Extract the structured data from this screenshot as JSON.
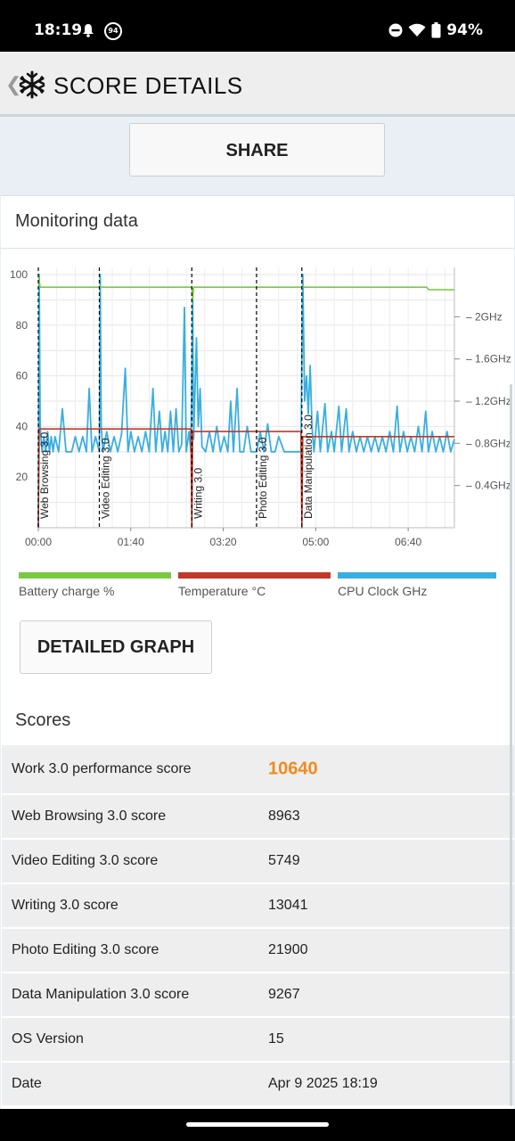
{
  "status_bar": {
    "time": "18:19",
    "badge": "94",
    "battery": "94%"
  },
  "app_bar": {
    "title": "SCORE DETAILS"
  },
  "share_label": "SHARE",
  "monitoring": {
    "title": "Monitoring data",
    "chart_data": {
      "type": "line",
      "y_left_ticks": [
        "100",
        "80",
        "60",
        "40",
        "20"
      ],
      "y_left_range": [
        0,
        100
      ],
      "y_right_ticks": [
        "2GHz",
        "1.6GHz",
        "1.2GHz",
        "0.8GHz",
        "0.4GHz"
      ],
      "y_right_range_ghz": [
        0,
        2.4
      ],
      "x_ticks": [
        "00:00",
        "01:40",
        "03:20",
        "05:00",
        "06:40"
      ],
      "x_range_sec": [
        0,
        450
      ],
      "grid": true,
      "legend_placement": "bottom",
      "colors": {
        "battery": "#7ac943",
        "temperature": "#c0392b",
        "cpu": "#3aaee0",
        "marker": "#000000"
      },
      "phases": [
        {
          "label": "Web Browsing 3.0",
          "x_sec": 0
        },
        {
          "label": "Video Editing 3.0",
          "x_sec": 66
        },
        {
          "label": "Writing 3.0",
          "x_sec": 166
        },
        {
          "label": "Photo Editing 3.0",
          "x_sec": 236
        },
        {
          "label": "Data Manipulation 3.0",
          "x_sec": 285
        }
      ],
      "series": [
        {
          "name": "Battery charge %",
          "points": [
            [
              0,
              100
            ],
            [
              2,
              95
            ],
            [
              166,
              95
            ],
            [
              167,
              90
            ],
            [
              168,
              95
            ],
            [
              420,
              95
            ],
            [
              422,
              94
            ],
            [
              450,
              94
            ]
          ]
        },
        {
          "name": "Temperature °C",
          "points": [
            [
              0,
              0
            ],
            [
              1,
              39
            ],
            [
              165,
              39
            ],
            [
              166,
              0
            ],
            [
              167,
              38
            ],
            [
              284,
              38
            ],
            [
              285,
              0
            ],
            [
              286,
              36
            ],
            [
              450,
              36
            ]
          ]
        },
        {
          "name": "CPU Clock GHz",
          "points": [
            [
              0,
              0
            ],
            [
              1,
              100
            ],
            [
              2,
              40
            ],
            [
              4,
              30
            ],
            [
              6,
              36
            ],
            [
              8,
              30
            ],
            [
              10,
              38
            ],
            [
              12,
              30
            ],
            [
              14,
              36
            ],
            [
              16,
              30
            ],
            [
              18,
              36
            ],
            [
              22,
              30
            ],
            [
              26,
              47
            ],
            [
              30,
              30
            ],
            [
              36,
              30
            ],
            [
              40,
              36
            ],
            [
              44,
              30
            ],
            [
              48,
              36
            ],
            [
              52,
              30
            ],
            [
              55,
              55
            ],
            [
              58,
              30
            ],
            [
              62,
              36
            ],
            [
              66,
              30
            ],
            [
              67,
              100
            ],
            [
              68,
              40
            ],
            [
              70,
              30
            ],
            [
              74,
              38
            ],
            [
              78,
              30
            ],
            [
              82,
              36
            ],
            [
              86,
              30
            ],
            [
              90,
              37
            ],
            [
              94,
              63
            ],
            [
              97,
              30
            ],
            [
              100,
              38
            ],
            [
              104,
              30
            ],
            [
              108,
              36
            ],
            [
              112,
              30
            ],
            [
              116,
              38
            ],
            [
              120,
              30
            ],
            [
              124,
              55
            ],
            [
              127,
              30
            ],
            [
              131,
              46
            ],
            [
              134,
              30
            ],
            [
              137,
              38
            ],
            [
              140,
              30
            ],
            [
              143,
              46
            ],
            [
              146,
              30
            ],
            [
              149,
              47
            ],
            [
              152,
              30
            ],
            [
              155,
              33
            ],
            [
              158,
              87
            ],
            [
              160,
              30
            ],
            [
              163,
              38
            ],
            [
              165,
              30
            ],
            [
              167,
              90
            ],
            [
              168,
              35
            ],
            [
              171,
              75
            ],
            [
              173,
              40
            ],
            [
              175,
              55
            ],
            [
              177,
              32
            ],
            [
              181,
              30
            ],
            [
              185,
              38
            ],
            [
              189,
              30
            ],
            [
              193,
              40
            ],
            [
              197,
              30
            ],
            [
              201,
              36
            ],
            [
              205,
              30
            ],
            [
              208,
              50
            ],
            [
              211,
              30
            ],
            [
              215,
              55
            ],
            [
              218,
              30
            ],
            [
              222,
              30
            ],
            [
              226,
              40
            ],
            [
              230,
              30
            ],
            [
              236,
              30
            ],
            [
              240,
              38
            ],
            [
              244,
              30
            ],
            [
              248,
              41
            ],
            [
              252,
              30
            ],
            [
              256,
              30
            ],
            [
              260,
              36
            ],
            [
              266,
              30
            ],
            [
              272,
              30
            ],
            [
              276,
              30
            ],
            [
              280,
              30
            ],
            [
              284,
              30
            ],
            [
              286,
              100
            ],
            [
              288,
              50
            ],
            [
              290,
              60
            ],
            [
              292,
              45
            ],
            [
              294,
              64
            ],
            [
              296,
              40
            ],
            [
              298,
              30
            ],
            [
              302,
              46
            ],
            [
              305,
              30
            ],
            [
              310,
              49
            ],
            [
              313,
              30
            ],
            [
              317,
              38
            ],
            [
              320,
              30
            ],
            [
              325,
              48
            ],
            [
              328,
              30
            ],
            [
              333,
              47
            ],
            [
              336,
              30
            ],
            [
              340,
              38
            ],
            [
              344,
              30
            ],
            [
              348,
              36
            ],
            [
              352,
              30
            ],
            [
              356,
              36
            ],
            [
              360,
              30
            ],
            [
              364,
              36
            ],
            [
              368,
              30
            ],
            [
              372,
              36
            ],
            [
              376,
              30
            ],
            [
              380,
              38
            ],
            [
              384,
              30
            ],
            [
              388,
              48
            ],
            [
              391,
              30
            ],
            [
              395,
              38
            ],
            [
              399,
              30
            ],
            [
              403,
              36
            ],
            [
              407,
              30
            ],
            [
              411,
              40
            ],
            [
              415,
              30
            ],
            [
              419,
              46
            ],
            [
              422,
              30
            ],
            [
              426,
              38
            ],
            [
              430,
              30
            ],
            [
              434,
              36
            ],
            [
              438,
              30
            ],
            [
              442,
              38
            ],
            [
              446,
              30
            ],
            [
              450,
              35
            ]
          ]
        }
      ]
    },
    "detailed_graph_label": "DETAILED GRAPH"
  },
  "scores": {
    "title": "Scores",
    "rows": [
      {
        "label": "Work 3.0 performance score",
        "value": "10640"
      },
      {
        "label": "Web Browsing 3.0 score",
        "value": "8963"
      },
      {
        "label": "Video Editing 3.0 score",
        "value": "5749"
      },
      {
        "label": "Writing 3.0 score",
        "value": "13041"
      },
      {
        "label": "Photo Editing 3.0 score",
        "value": "21900"
      },
      {
        "label": "Data Manipulation 3.0 score",
        "value": "9267"
      },
      {
        "label": "OS Version",
        "value": "15"
      },
      {
        "label": "Date",
        "value": "Apr 9 2025 18:19"
      }
    ]
  }
}
